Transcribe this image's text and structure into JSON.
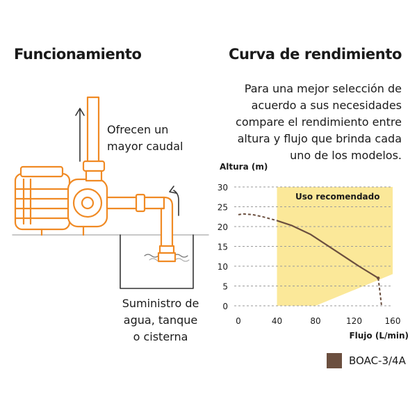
{
  "left_heading": "Funcionamiento",
  "right_heading": "Curva de rendimiento",
  "description_lines": [
    "Para una mejor selección de",
    "acuerdo a sus necesidades",
    "compare el rendimiento entre",
    "altura y flujo que brinda cada",
    "uno de los modelos."
  ],
  "diagram": {
    "outlet_caption_lines": [
      "Ofrecen un",
      "mayor caudal"
    ],
    "supply_caption_lines": [
      "Suministro de",
      "agua, tanque",
      "o cisterna"
    ],
    "accent_color": "#f08a24"
  },
  "chart_data": {
    "type": "line",
    "title": "",
    "xlabel": "Flujo (L/min)",
    "ylabel": "Altura (m)",
    "xlim": [
      0,
      160
    ],
    "ylim": [
      0,
      30
    ],
    "x_ticks": [
      0,
      40,
      80,
      120,
      160
    ],
    "y_ticks": [
      0,
      5,
      10,
      15,
      20,
      25,
      30
    ],
    "grid": "horizontal-dashed",
    "recommended_zone": {
      "label": "Uso recomendado",
      "color": "#fbe899",
      "polygon": [
        [
          40,
          0
        ],
        [
          40,
          30
        ],
        [
          160,
          30
        ],
        [
          160,
          8
        ],
        [
          80,
          0
        ]
      ]
    },
    "series": [
      {
        "name": "BOAC-3/4A",
        "color": "#6b4f3f",
        "solid_segment": [
          [
            40,
            21.5
          ],
          [
            55,
            20.3
          ],
          [
            75,
            18
          ],
          [
            100,
            14
          ],
          [
            125,
            10
          ],
          [
            145,
            7
          ]
        ],
        "dashed_left": [
          [
            0,
            23
          ],
          [
            5,
            23.2
          ],
          [
            15,
            23
          ],
          [
            25,
            22.5
          ],
          [
            40,
            21.5
          ]
        ],
        "dashed_right": [
          [
            145,
            7
          ],
          [
            147,
            3
          ],
          [
            148.5,
            0
          ]
        ]
      }
    ],
    "legend": "bottom-right"
  }
}
